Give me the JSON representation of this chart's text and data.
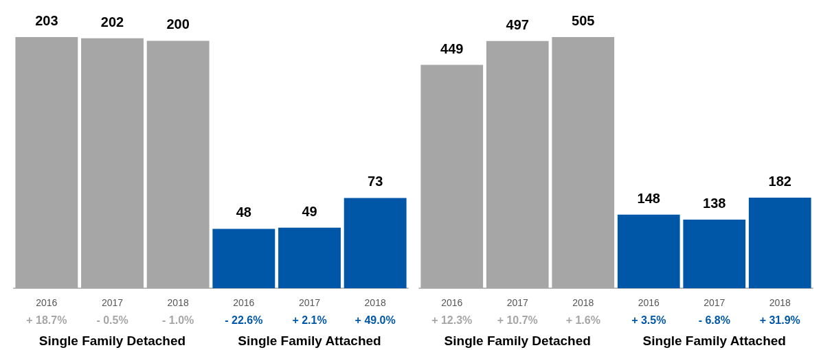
{
  "chart_data": [
    {
      "type": "bar",
      "categories": [
        "2016",
        "2017",
        "2018",
        "2016",
        "2017",
        "2018"
      ],
      "values": [
        203,
        202,
        200,
        48,
        49,
        73
      ],
      "colors": [
        "#a6a6a6",
        "#a6a6a6",
        "#a6a6a6",
        "#0057a8",
        "#0057a8",
        "#0057a8"
      ],
      "data_labels": true,
      "annotations": [
        "+ 18.7%",
        "- 0.5%",
        "- 1.0%",
        "- 22.6%",
        "+ 2.1%",
        "+ 49.0%",
        "Single Family Detached",
        "Single Family Attached"
      ]
    },
    {
      "type": "bar",
      "categories": [
        "2016",
        "2017",
        "2018",
        "2016",
        "2017",
        "2018"
      ],
      "values": [
        449,
        497,
        505,
        148,
        138,
        182
      ],
      "colors": [
        "#a6a6a6",
        "#a6a6a6",
        "#a6a6a6",
        "#0057a8",
        "#0057a8",
        "#0057a8"
      ],
      "data_labels": true,
      "annotations": [
        "+ 12.3%",
        "+ 10.7%",
        "+ 1.6%",
        "+ 3.5%",
        "- 6.8%",
        "+ 31.9%",
        "Single Family Detached",
        "Single Family Attached"
      ]
    }
  ]
}
